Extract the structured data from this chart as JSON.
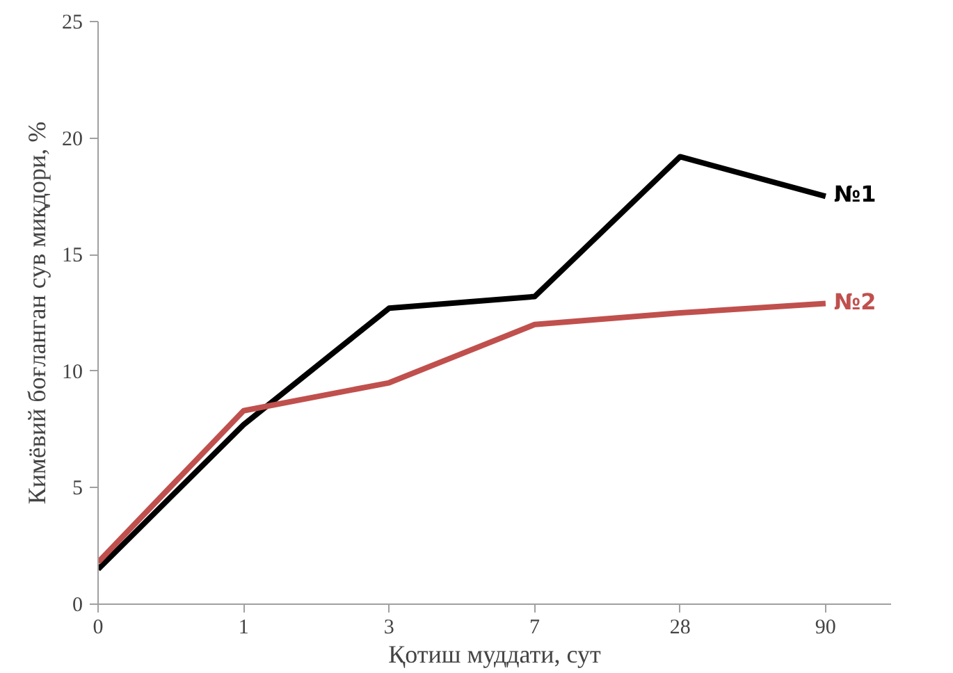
{
  "chart_data": {
    "type": "line",
    "xlabel": "Қотиш муддати, сут",
    "ylabel": "Кимёвий боғланган сув миқдори, %",
    "categories": [
      "0",
      "1",
      "3",
      "7",
      "28",
      "90"
    ],
    "series": [
      {
        "name": "№1",
        "color": "#000000",
        "values": [
          1.5,
          7.7,
          12.7,
          13.2,
          19.2,
          17.5
        ]
      },
      {
        "name": "№2",
        "color": "#c0504d",
        "values": [
          1.8,
          8.3,
          9.5,
          12.0,
          12.5,
          12.9
        ]
      }
    ],
    "ylim": [
      0,
      25
    ],
    "yticks": [
      0,
      5,
      10,
      15,
      20,
      25
    ],
    "grid": false,
    "legend": false,
    "marker": "none",
    "line_style": "solid"
  }
}
